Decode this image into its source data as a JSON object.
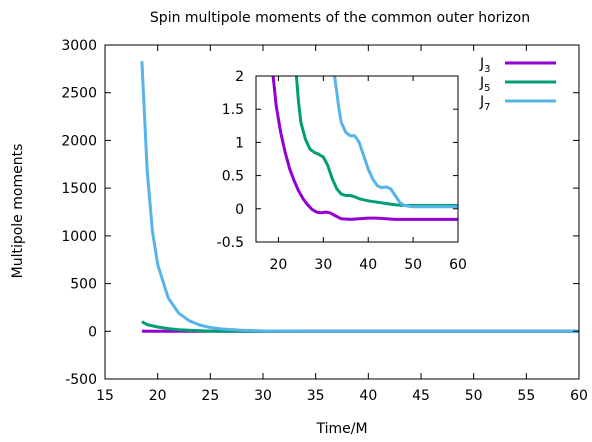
{
  "chart_data": [
    {
      "type": "line",
      "title": "Spin multipole moments of the common outer horizon",
      "xlabel": "Time/M",
      "ylabel": "Multipole moments",
      "xlim": [
        15,
        60
      ],
      "ylim": [
        -500,
        3000
      ],
      "xticks": [
        "15",
        "20",
        "25",
        "30",
        "35",
        "40",
        "45",
        "50",
        "55",
        "60"
      ],
      "yticks": [
        "-500",
        "0",
        "500",
        "1000",
        "1500",
        "2000",
        "2500",
        "3000"
      ],
      "grid": false,
      "legend_position": "inside top-right",
      "series": [
        {
          "name": "J3",
          "name_main": "J",
          "name_sub": "3",
          "color": "#9400d3",
          "x": [
            18.5,
            19,
            20,
            21,
            22,
            25,
            30,
            40,
            50,
            60
          ],
          "y": [
            2,
            1.3,
            0.7,
            0.35,
            0.15,
            0,
            -0.05,
            -0.15,
            -0.15,
            -0.15
          ]
        },
        {
          "name": "J5",
          "name_main": "J",
          "name_sub": "5",
          "color": "#009e73",
          "x": [
            18.5,
            19,
            20,
            21,
            22,
            23,
            24,
            25,
            27,
            30,
            35,
            40,
            50,
            60
          ],
          "y": [
            100,
            70,
            45,
            28,
            17,
            10,
            5,
            2,
            1,
            0.8,
            0.25,
            0.1,
            0.05,
            0.05
          ]
        },
        {
          "name": "J7",
          "name_main": "J",
          "name_sub": "7",
          "color": "#56b4e9",
          "x": [
            18.5,
            19,
            19.5,
            20,
            21,
            22,
            23,
            24,
            25,
            26,
            28,
            30,
            35,
            40,
            45,
            50,
            60
          ],
          "y": [
            2830,
            1700,
            1050,
            700,
            350,
            190,
            110,
            65,
            40,
            25,
            10,
            4,
            1.1,
            0.6,
            0.3,
            0.05,
            0.05
          ]
        }
      ]
    },
    {
      "type": "line",
      "panel": "inset",
      "xlim": [
        15,
        60
      ],
      "ylim": [
        -0.5,
        2
      ],
      "xticks": [
        "20",
        "30",
        "40",
        "50",
        "60"
      ],
      "yticks": [
        "-0.5",
        "0",
        "0.5",
        "1",
        "1.5",
        "2"
      ],
      "series": [
        {
          "name": "J3",
          "color": "#9400d3",
          "x": [
            18.8,
            19.5,
            20.5,
            21.5,
            22.5,
            23.5,
            24.5,
            25.5,
            26.5,
            27.5,
            28.5,
            29.5,
            30.5,
            31.5,
            32.5,
            34,
            36,
            38,
            40,
            42,
            44,
            46,
            50,
            55,
            60
          ],
          "y": [
            2,
            1.55,
            1.15,
            0.85,
            0.6,
            0.42,
            0.27,
            0.15,
            0.06,
            -0.01,
            -0.05,
            -0.06,
            -0.05,
            -0.06,
            -0.1,
            -0.15,
            -0.16,
            -0.15,
            -0.14,
            -0.14,
            -0.15,
            -0.16,
            -0.16,
            -0.16,
            -0.16
          ]
        },
        {
          "name": "J5",
          "color": "#009e73",
          "x": [
            24,
            24.5,
            25,
            26,
            27,
            28,
            29,
            30,
            31,
            32,
            33,
            34,
            35,
            36,
            37,
            38,
            40,
            42,
            44,
            46,
            48,
            50,
            55,
            60
          ],
          "y": [
            2,
            1.6,
            1.3,
            1.05,
            0.9,
            0.85,
            0.82,
            0.78,
            0.65,
            0.45,
            0.3,
            0.22,
            0.2,
            0.2,
            0.18,
            0.15,
            0.12,
            0.1,
            0.08,
            0.06,
            0.05,
            0.05,
            0.05,
            0.05
          ]
        },
        {
          "name": "J7",
          "color": "#56b4e9",
          "x": [
            32.5,
            33,
            33.5,
            34,
            35,
            36,
            37,
            38,
            39,
            40,
            41,
            42,
            43,
            44,
            45,
            46,
            47,
            48,
            50,
            55,
            60
          ],
          "y": [
            2,
            1.75,
            1.5,
            1.3,
            1.15,
            1.1,
            1.1,
            1.0,
            0.8,
            0.6,
            0.45,
            0.35,
            0.32,
            0.33,
            0.3,
            0.2,
            0.1,
            0.05,
            0.03,
            0.03,
            0.03
          ]
        }
      ]
    }
  ]
}
